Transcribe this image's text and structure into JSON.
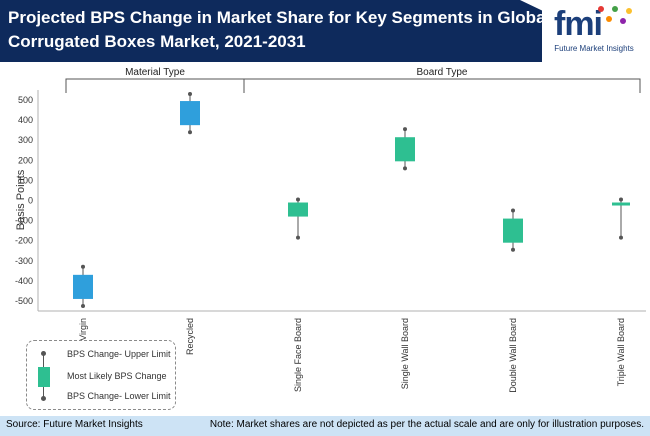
{
  "header": {
    "title_line1": "Projected BPS Change in Market Share for Key Segments in Global",
    "title_line2": "Corrugated Boxes Market, 2021-2031",
    "logo_text": "fmi",
    "logo_subtitle": "Future Market Insights"
  },
  "colors": {
    "header_bg": "#0e2a5c",
    "material": "#2f9fdc",
    "board": "#2ebf91",
    "footer_bg": "#cde3f5"
  },
  "legend": {
    "upper": "BPS Change- Upper Limit",
    "likely": "Most Likely BPS Change",
    "lower": "BPS Change- Lower Limit"
  },
  "footer": {
    "source": "Source: Future Market Insights",
    "note": "Note: Market shares are not depicted as per the actual scale and are only for illustration purposes."
  },
  "chart_data": {
    "type": "boxplot",
    "ylabel": "Basis Points",
    "ylim": [
      -550,
      550
    ],
    "yticks": [
      500,
      400,
      300,
      200,
      100,
      0,
      -100,
      -200,
      -300,
      -400,
      -500
    ],
    "groups": [
      {
        "label": "Material Type",
        "categories": [
          "Virgin",
          "Recycled"
        ]
      },
      {
        "label": "Board Type",
        "categories": [
          "Single Face Board",
          "Single Wall Board",
          "Double Wall Board",
          "Triple Wall Board"
        ]
      }
    ],
    "series": [
      {
        "category": "Virgin",
        "group": "Material Type",
        "lower": -525,
        "box_low": -490,
        "box_high": -370,
        "upper": -330
      },
      {
        "category": "Recycled",
        "group": "Material Type",
        "lower": 340,
        "box_low": 375,
        "box_high": 495,
        "upper": 530
      },
      {
        "category": "Single Face Board",
        "group": "Board Type",
        "lower": -185,
        "box_low": -80,
        "box_high": -10,
        "upper": 5
      },
      {
        "category": "Single Wall Board",
        "group": "Board Type",
        "lower": 160,
        "box_low": 195,
        "box_high": 315,
        "upper": 355
      },
      {
        "category": "Double Wall Board",
        "group": "Board Type",
        "lower": -245,
        "box_low": -210,
        "box_high": -90,
        "upper": -50
      },
      {
        "category": "Triple Wall Board",
        "group": "Board Type",
        "lower": -185,
        "box_low": -25,
        "box_high": -10,
        "upper": 5
      }
    ]
  }
}
